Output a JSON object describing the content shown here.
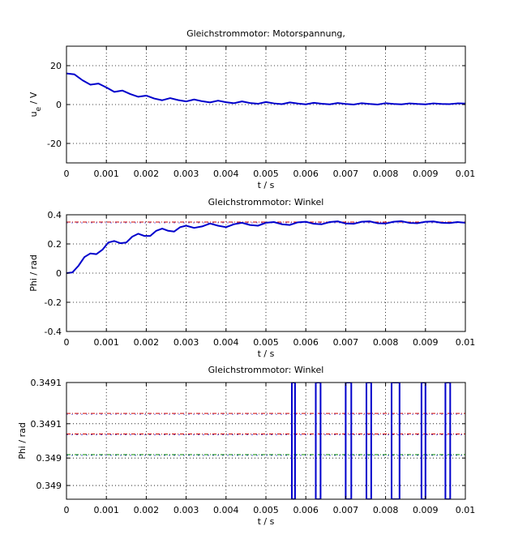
{
  "chart_data": [
    {
      "type": "line",
      "title": "Gleichstrommotor: Motorspannung,",
      "xlabel": "t / s",
      "ylabel": "u_e / V",
      "xlim": [
        0,
        0.01
      ],
      "ylim": [
        -30,
        30
      ],
      "grid": true,
      "x_ticks": [
        "0",
        "0.001",
        "0.002",
        "0.003",
        "0.004",
        "0.005",
        "0.006",
        "0.007",
        "0.008",
        "0.009",
        "0.01"
      ],
      "y_ticks": [
        "-20",
        "0",
        "20"
      ],
      "y_tick_values": [
        -20,
        0,
        20
      ],
      "series": [
        {
          "color": "#0000cc",
          "x": [
            0,
            0.0002,
            0.0004,
            0.0006,
            0.0008,
            0.001,
            0.0012,
            0.0014,
            0.0016,
            0.0018,
            0.002,
            0.0022,
            0.0024,
            0.0026,
            0.0028,
            0.003,
            0.0032,
            0.0034,
            0.0036,
            0.0038,
            0.004,
            0.0042,
            0.0044,
            0.0046,
            0.0048,
            0.005,
            0.0052,
            0.0054,
            0.0056,
            0.0058,
            0.006,
            0.0062,
            0.0064,
            0.0066,
            0.0068,
            0.007,
            0.0072,
            0.0074,
            0.0076,
            0.0078,
            0.008,
            0.0082,
            0.0084,
            0.0086,
            0.0088,
            0.009,
            0.0092,
            0.0094,
            0.0096,
            0.0098,
            0.01
          ],
          "y": [
            16,
            15.5,
            12.5,
            10.2,
            10.8,
            8.8,
            6.5,
            7.2,
            5.4,
            4.0,
            4.6,
            3.1,
            2.2,
            3.3,
            2.3,
            1.6,
            2.6,
            1.7,
            1.1,
            2.0,
            1.2,
            0.7,
            1.6,
            0.8,
            0.4,
            1.3,
            0.6,
            0.2,
            1.1,
            0.5,
            0.1,
            0.9,
            0.4,
            0.1,
            0.8,
            0.3,
            0.0,
            0.7,
            0.3,
            0.0,
            0.7,
            0.3,
            0.1,
            0.6,
            0.3,
            0.1,
            0.6,
            0.3,
            0.2,
            0.6,
            0.5
          ]
        }
      ]
    },
    {
      "type": "line",
      "title": "Gleichstrommotor: Winkel",
      "xlabel": "t / s",
      "ylabel": "Phi / rad",
      "xlim": [
        0,
        0.01
      ],
      "ylim": [
        -0.4,
        0.4
      ],
      "grid": true,
      "x_ticks": [
        "0",
        "0.001",
        "0.002",
        "0.003",
        "0.004",
        "0.005",
        "0.006",
        "0.007",
        "0.008",
        "0.009",
        "0.01"
      ],
      "y_ticks": [
        "-0.4",
        "-0.2",
        "0",
        "0.2",
        "0.4"
      ],
      "y_tick_values": [
        -0.4,
        -0.2,
        0,
        0.2,
        0.4
      ],
      "reference_lines": [
        {
          "y": 0.35,
          "color": "#cc0000"
        }
      ],
      "series": [
        {
          "color": "#0000cc",
          "x": [
            0,
            0.00015,
            0.0003,
            0.00045,
            0.0006,
            0.00075,
            0.0009,
            0.00105,
            0.0012,
            0.00135,
            0.0015,
            0.00165,
            0.0018,
            0.00195,
            0.0021,
            0.00225,
            0.0024,
            0.00255,
            0.0027,
            0.00285,
            0.003,
            0.0032,
            0.0034,
            0.0036,
            0.0038,
            0.004,
            0.0042,
            0.0044,
            0.0046,
            0.0048,
            0.005,
            0.0052,
            0.0054,
            0.0056,
            0.0058,
            0.006,
            0.0062,
            0.0064,
            0.0066,
            0.0068,
            0.007,
            0.0072,
            0.0074,
            0.0076,
            0.0078,
            0.008,
            0.0082,
            0.0084,
            0.0086,
            0.0088,
            0.009,
            0.0092,
            0.0094,
            0.0096,
            0.0098,
            0.01
          ],
          "y": [
            0,
            0.005,
            0.05,
            0.11,
            0.135,
            0.13,
            0.16,
            0.21,
            0.22,
            0.205,
            0.21,
            0.25,
            0.27,
            0.255,
            0.255,
            0.29,
            0.305,
            0.29,
            0.285,
            0.315,
            0.325,
            0.31,
            0.32,
            0.34,
            0.325,
            0.315,
            0.335,
            0.345,
            0.33,
            0.325,
            0.345,
            0.35,
            0.335,
            0.33,
            0.348,
            0.352,
            0.338,
            0.335,
            0.35,
            0.355,
            0.34,
            0.338,
            0.352,
            0.355,
            0.342,
            0.34,
            0.352,
            0.356,
            0.344,
            0.342,
            0.352,
            0.354,
            0.345,
            0.343,
            0.35,
            0.345
          ]
        }
      ]
    },
    {
      "type": "line",
      "title": "Gleichstrommotor: Winkel",
      "xlabel": "t / s",
      "ylabel": "Phi / rad",
      "xlim": [
        0,
        0.01
      ],
      "ylim": [
        0.34894,
        0.34911
      ],
      "grid": true,
      "x_ticks": [
        "0",
        "0.001",
        "0.002",
        "0.003",
        "0.004",
        "0.005",
        "0.006",
        "0.007",
        "0.008",
        "0.009",
        "0.01"
      ],
      "y_ticks": [
        "0.349",
        "0.349",
        "0.3491",
        "0.3491"
      ],
      "y_tick_values": [
        0.34896,
        0.349,
        0.34905,
        0.34911
      ],
      "reference_lines": [
        {
          "y": 0.349035,
          "color": "#cc0000"
        },
        {
          "y": 0.349005,
          "color": "#008800"
        },
        {
          "y": 0.349065,
          "color": "#cc0000"
        }
      ],
      "vertical_bursts": [
        {
          "x": 0.00565,
          "width": 8e-05
        },
        {
          "x": 0.00625,
          "width": 0.00012
        },
        {
          "x": 0.007,
          "width": 0.00014
        },
        {
          "x": 0.00752,
          "width": 0.00012
        },
        {
          "x": 0.00815,
          "width": 0.0002
        },
        {
          "x": 0.0089,
          "width": 0.0001
        },
        {
          "x": 0.0095,
          "width": 0.00012
        }
      ]
    }
  ]
}
